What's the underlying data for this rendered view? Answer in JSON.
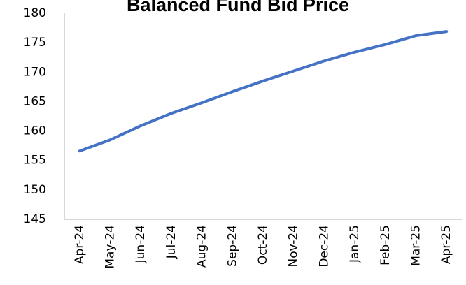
{
  "chart_data": {
    "type": "line",
    "title": "Balanced Fund Bid Price",
    "categories": [
      "Apr-24",
      "May-24",
      "Jun-24",
      "Jul-24",
      "Aug-24",
      "Sep-24",
      "Oct-24",
      "Nov-24",
      "Dec-24",
      "Jan-25",
      "Feb-25",
      "Mar-25",
      "Apr-25"
    ],
    "series": [
      {
        "name": "Balanced Fund Bid Price",
        "color": "#4472c4",
        "values": [
          156.6,
          158.5,
          160.9,
          163.0,
          164.8,
          166.7,
          168.5,
          170.2,
          171.9,
          173.4,
          174.7,
          176.2,
          176.9
        ]
      }
    ],
    "ylim": [
      145,
      180
    ],
    "yticks": [
      145,
      150,
      155,
      160,
      165,
      170,
      175,
      180
    ],
    "grid": false
  }
}
